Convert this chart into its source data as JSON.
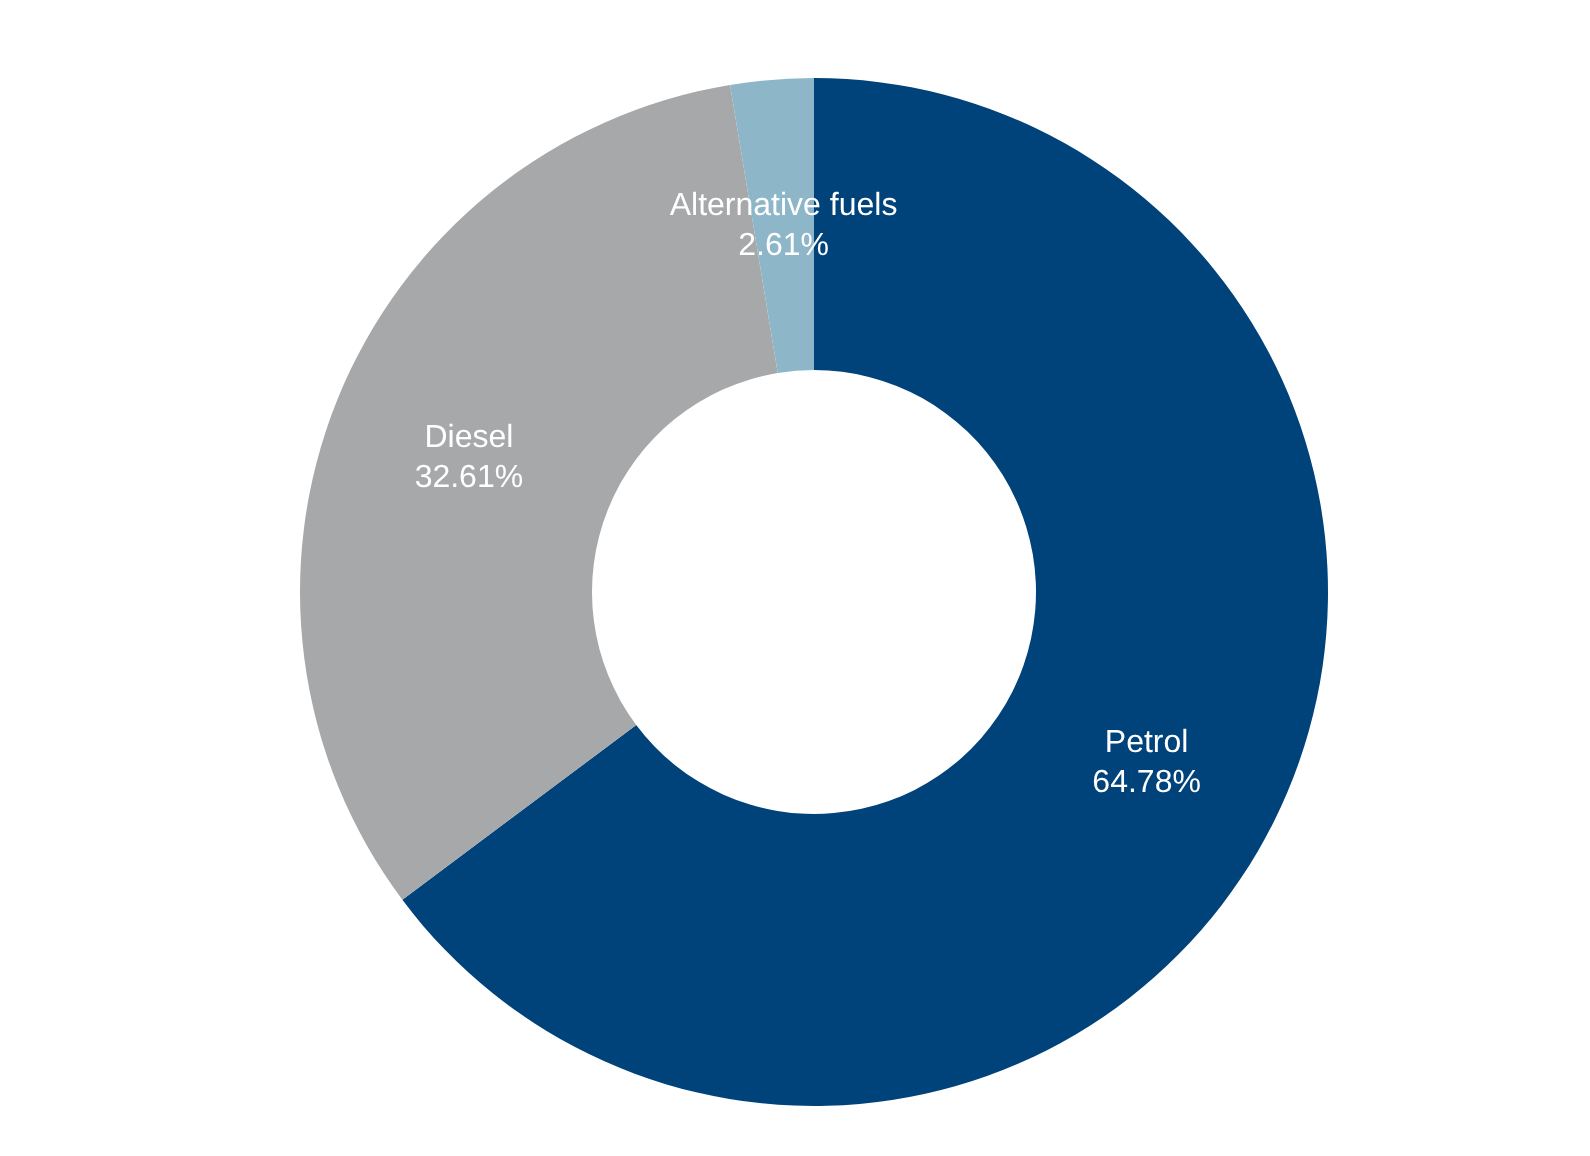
{
  "chart_data": {
    "type": "donut",
    "categories": [
      "Petrol",
      "Diesel",
      "Alternative fuels"
    ],
    "values": [
      64.78,
      32.61,
      2.61
    ],
    "colors": [
      "#00427a",
      "#a7a8aa",
      "#8db6c9"
    ],
    "value_labels": [
      "64.78%",
      "32.61%",
      "2.61%"
    ]
  }
}
